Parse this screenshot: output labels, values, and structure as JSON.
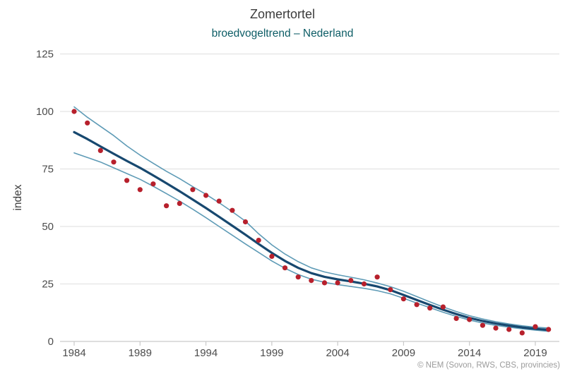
{
  "chart_data": {
    "type": "line",
    "title": "Zomertortel",
    "subtitle": "broedvogeltrend – Nederland",
    "xlabel": "",
    "ylabel": "index",
    "ylim": [
      0,
      130
    ],
    "yticks": [
      0,
      25,
      50,
      75,
      100,
      125
    ],
    "xticks": [
      1984,
      1989,
      1994,
      1999,
      2004,
      2009,
      2014,
      2019
    ],
    "grid": "horizontal",
    "legend_position": "none",
    "credit": "© NEM (Sovon, RWS, CBS, provincies)",
    "x": [
      1984,
      1985,
      1986,
      1987,
      1988,
      1989,
      1990,
      1991,
      1992,
      1993,
      1994,
      1995,
      1996,
      1997,
      1998,
      1999,
      2000,
      2001,
      2002,
      2003,
      2004,
      2005,
      2006,
      2007,
      2008,
      2009,
      2010,
      2011,
      2012,
      2013,
      2014,
      2015,
      2016,
      2017,
      2018,
      2019,
      2020
    ],
    "series": [
      {
        "name": "jaarindex_punten",
        "type": "scatter",
        "color": "#b7202c",
        "values": [
          100,
          95,
          83,
          78,
          70,
          66,
          68.5,
          59,
          60,
          66,
          63.5,
          61,
          57,
          52,
          44,
          37,
          32,
          28,
          26.5,
          25.5,
          25.5,
          26.5,
          25,
          28,
          22.5,
          18.5,
          16,
          14.5,
          15,
          10,
          9.5,
          7,
          5.8,
          5.2,
          3.7,
          6.4,
          5.2
        ]
      },
      {
        "name": "trend",
        "type": "line",
        "color": "#17486f",
        "values": [
          91,
          88,
          84.8,
          81.6,
          78.5,
          75.5,
          72.2,
          68.8,
          65.3,
          61.7,
          58,
          54.2,
          50.3,
          46.4,
          42.4,
          38.5,
          35,
          32,
          29.7,
          28.1,
          27,
          26.1,
          25.1,
          23.9,
          22.3,
          20.2,
          18,
          15.9,
          13.8,
          11.9,
          10.2,
          8.9,
          7.8,
          6.9,
          6.1,
          5.5,
          5
        ]
      },
      {
        "name": "betrouwbaarheid_boven",
        "type": "line",
        "color": "#5e9bb6",
        "values": [
          102,
          97.5,
          93.5,
          89.5,
          85,
          81,
          77.5,
          74,
          70.8,
          67.3,
          64,
          60.3,
          56.4,
          52.3,
          46.8,
          42,
          38,
          34.7,
          32,
          30.2,
          29,
          27.9,
          26.8,
          25.4,
          23.8,
          21.8,
          19.5,
          17.2,
          15,
          13,
          11.2,
          9.8,
          8.6,
          7.6,
          6.8,
          6.2,
          5.8
        ]
      },
      {
        "name": "betrouwbaarheid_onder",
        "type": "line",
        "color": "#5e9bb6",
        "values": [
          82,
          80,
          78,
          75.5,
          73,
          70.5,
          67.5,
          64.3,
          61,
          57.5,
          53.8,
          50,
          46.2,
          42.4,
          38.7,
          35,
          31.8,
          29.1,
          27.1,
          25.7,
          24.7,
          23.9,
          23.1,
          22.1,
          20.7,
          18.8,
          16.7,
          14.7,
          12.7,
          10.9,
          9.3,
          8,
          7,
          6.2,
          5.5,
          4.9,
          4.4
        ]
      }
    ]
  },
  "colors": {
    "title": "#3b3b3b",
    "subtitle": "#0d5d66",
    "axis_text": "#4c4c4c",
    "ylabel": "#3b3b3b",
    "credit": "#9b9b9b",
    "grid": "#e3e3e3",
    "axis_line": "#c9c9c9"
  }
}
